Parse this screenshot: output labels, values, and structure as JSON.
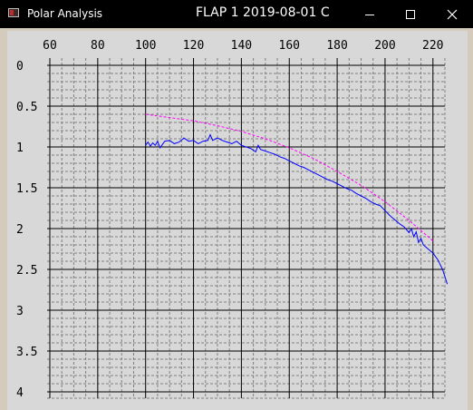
{
  "window": {
    "app_title": "Polar Analysis",
    "doc_title": "FLAP 1 2019-08-01 C",
    "buttons": {
      "minimize": "minimize-icon",
      "maximize": "maximize-icon",
      "close": "close-icon"
    }
  },
  "colors": {
    "title_bar": "#000000",
    "frame": "#d4cbbd",
    "plot_background": "#d8d8d8",
    "measured_line": "#0000ff",
    "fitted_curve": "#ff00ff",
    "major_grid": "#000000",
    "minor_grid": "#808080"
  },
  "chart_data": {
    "type": "line",
    "xlim": [
      60,
      225
    ],
    "ylim": [
      0,
      4
    ],
    "y_inverted": true,
    "x_ticks": [
      60,
      80,
      100,
      120,
      140,
      160,
      180,
      200,
      220
    ],
    "x_tick_labels": [
      "60",
      "80",
      "100",
      "120",
      "140",
      "160",
      "180",
      "200",
      "220"
    ],
    "y_ticks": [
      0,
      0.5,
      1,
      1.5,
      2,
      2.5,
      3,
      3.5,
      4
    ],
    "y_tick_labels": [
      "0",
      "0.5",
      "1",
      "1.5",
      "2",
      "2.5",
      "3",
      "3.5",
      "4"
    ],
    "grid": true,
    "minor_grid": true,
    "series": [
      {
        "color": "#0000ff",
        "x": [
          100,
          101,
          102,
          103,
          104,
          105,
          106,
          108,
          110,
          112,
          114,
          116,
          118,
          120,
          122,
          124,
          126,
          127,
          128,
          130,
          132,
          134,
          136,
          138,
          140,
          142,
          144,
          146,
          147,
          148,
          150,
          152,
          154,
          156,
          158,
          160,
          162,
          164,
          166,
          168,
          170,
          172,
          174,
          176,
          178,
          180,
          182,
          184,
          186,
          188,
          190,
          192,
          194,
          196,
          198,
          200,
          202,
          204,
          206,
          208,
          210,
          211,
          212,
          213,
          214,
          215,
          216,
          218,
          220,
          222,
          224,
          226
        ],
        "y": [
          0.98,
          0.94,
          0.99,
          0.95,
          0.98,
          0.93,
          1.01,
          0.93,
          0.92,
          0.96,
          0.94,
          0.89,
          0.93,
          0.92,
          0.96,
          0.93,
          0.92,
          0.85,
          0.92,
          0.89,
          0.92,
          0.94,
          0.96,
          0.93,
          0.98,
          1.0,
          1.02,
          1.06,
          0.98,
          1.03,
          1.05,
          1.07,
          1.09,
          1.12,
          1.14,
          1.17,
          1.2,
          1.23,
          1.25,
          1.28,
          1.31,
          1.34,
          1.37,
          1.4,
          1.42,
          1.45,
          1.48,
          1.51,
          1.53,
          1.57,
          1.6,
          1.63,
          1.67,
          1.7,
          1.72,
          1.78,
          1.84,
          1.89,
          1.94,
          1.98,
          2.05,
          2.0,
          2.1,
          2.04,
          2.17,
          2.12,
          2.2,
          2.25,
          2.3,
          2.38,
          2.5,
          2.68
        ]
      },
      {
        "color": "#ff00ff",
        "dashed": true,
        "x": [
          100,
          110,
          120,
          130,
          140,
          150,
          160,
          170,
          180,
          190,
          200,
          210,
          220
        ],
        "y": [
          0.6,
          0.64,
          0.68,
          0.74,
          0.81,
          0.9,
          1.01,
          1.14,
          1.3,
          1.47,
          1.67,
          1.9,
          2.15
        ]
      }
    ]
  }
}
